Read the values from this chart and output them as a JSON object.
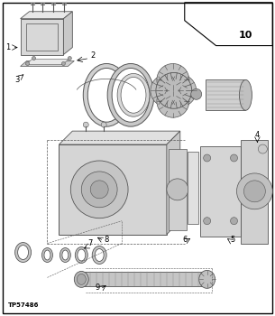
{
  "bg_color": "#ffffff",
  "black": "#000000",
  "dgray": "#555555",
  "gray": "#888888",
  "lgray": "#cccccc",
  "ref_code": "TP57486",
  "page_num": "10",
  "fig_width": 3.05,
  "fig_height": 3.5,
  "dpi": 100
}
